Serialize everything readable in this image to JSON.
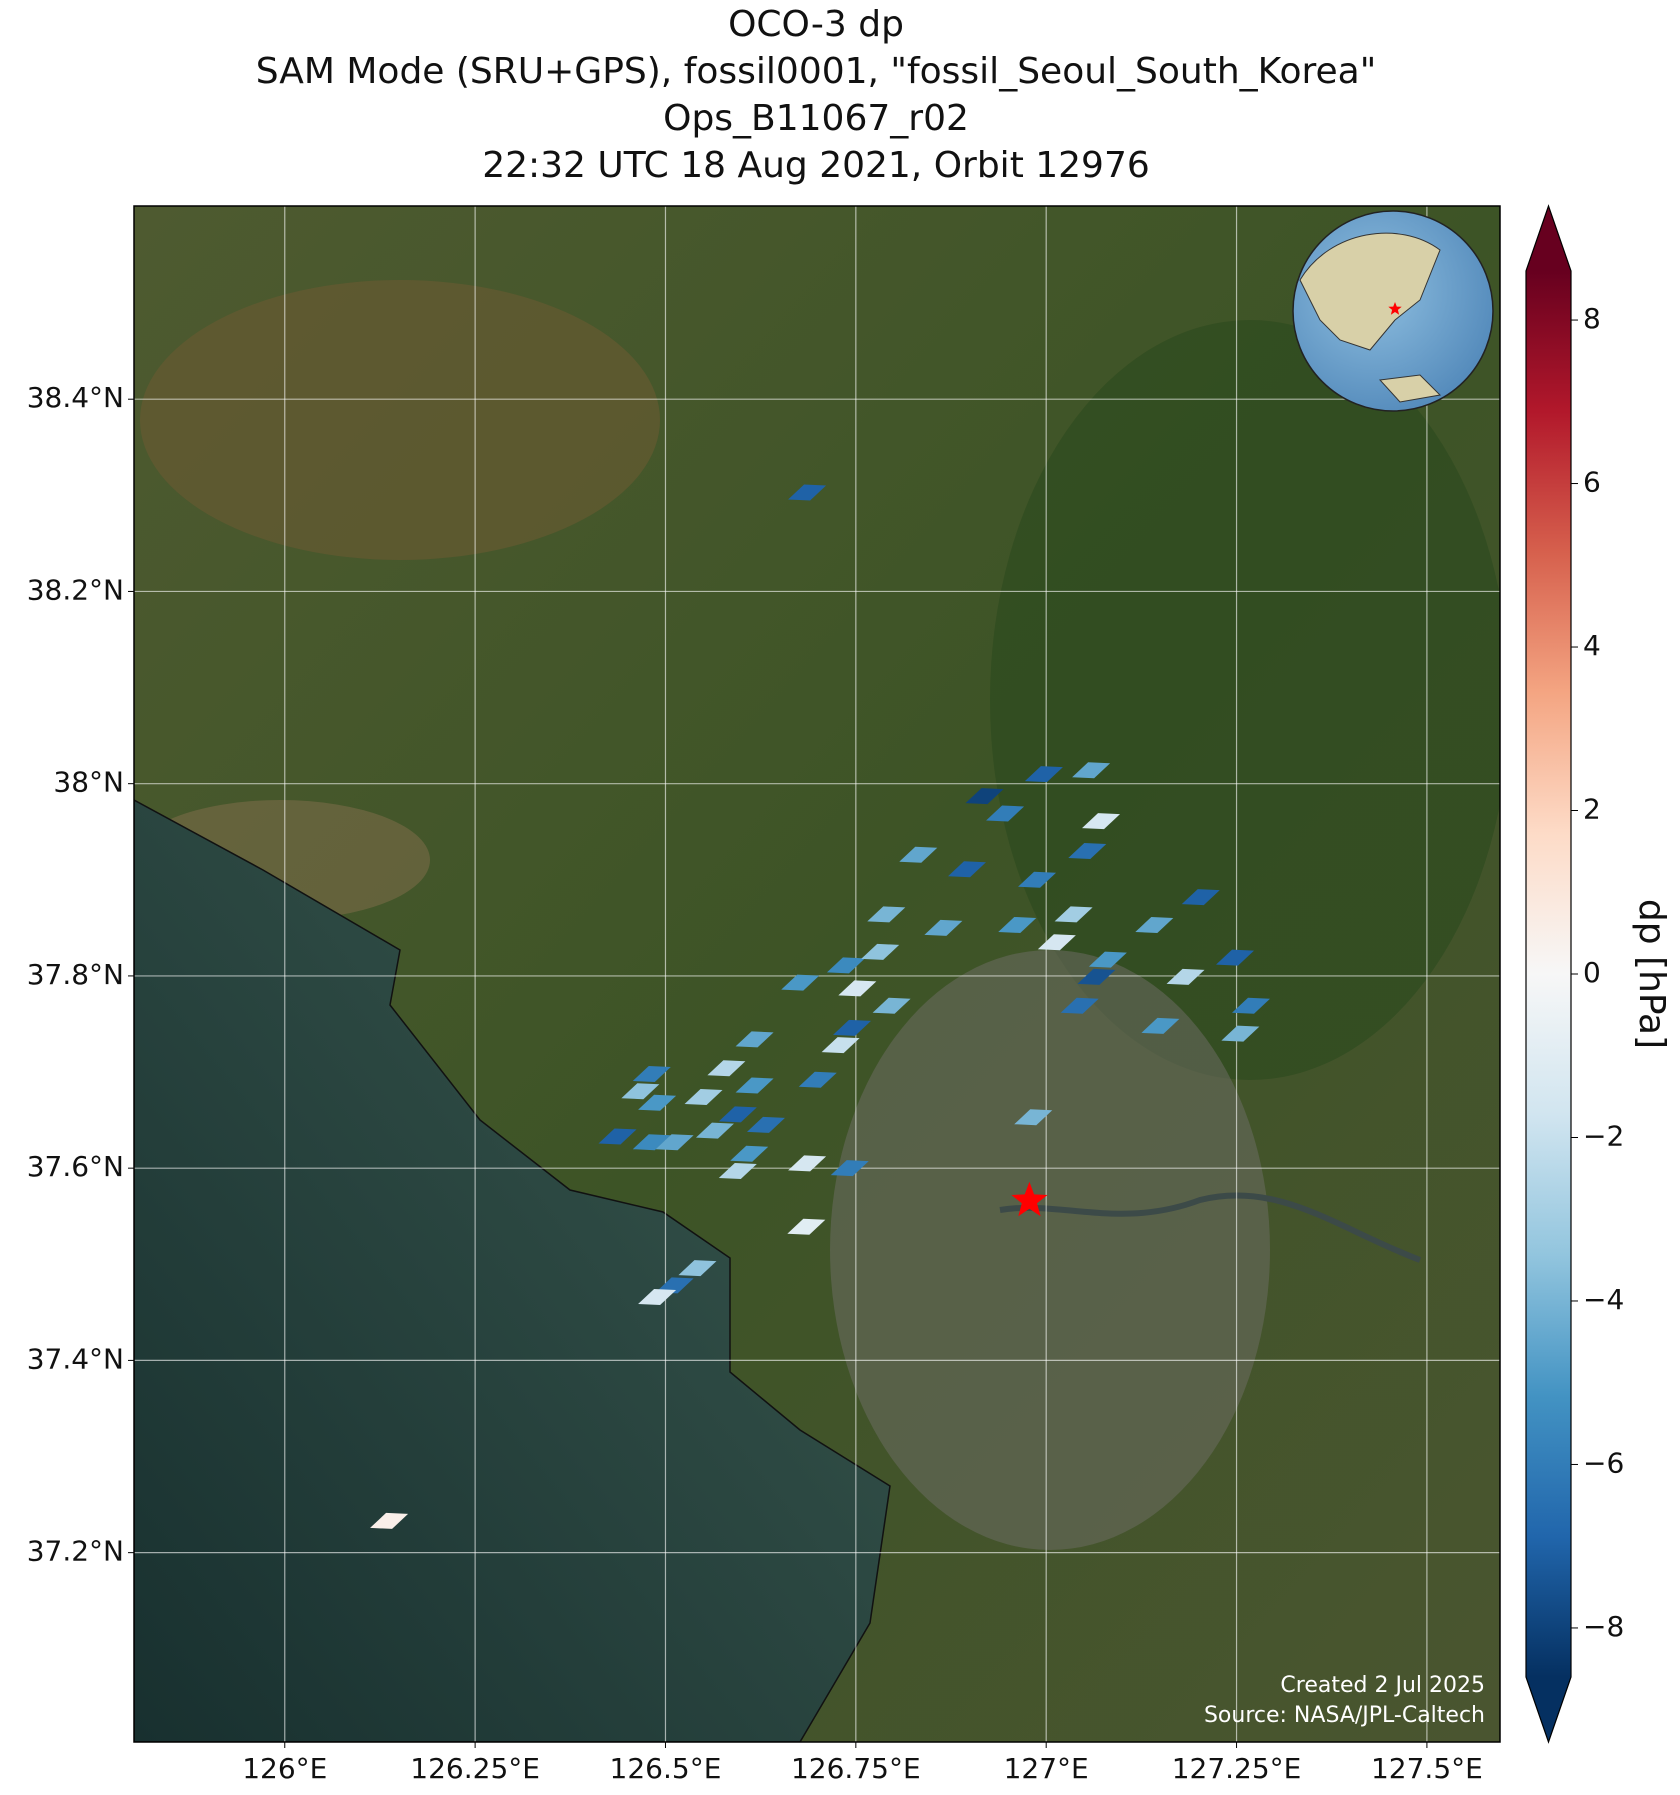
{
  "chart_data": {
    "type": "map",
    "title": [
      "OCO-3 dp",
      "SAM Mode (SRU+GPS), fossil0001, \"fossil_Seoul_South_Korea\"",
      "Ops_B11067_r02",
      "22:32 UTC 18 Aug 2021, Orbit 12976"
    ],
    "xlim": [
      125.802,
      127.596
    ],
    "ylim": [
      37.003,
      38.601
    ],
    "xticks": [
      {
        "value": 126,
        "label": "126°E"
      },
      {
        "value": 126.25,
        "label": "126.25°E"
      },
      {
        "value": 126.5,
        "label": "126.5°E"
      },
      {
        "value": 126.75,
        "label": "126.75°E"
      },
      {
        "value": 127,
        "label": "127°E"
      },
      {
        "value": 127.25,
        "label": "127.25°E"
      },
      {
        "value": 127.5,
        "label": "127.5°E"
      }
    ],
    "yticks": [
      {
        "value": 37.2,
        "label": "37.2°N"
      },
      {
        "value": 37.4,
        "label": "37.4°N"
      },
      {
        "value": 37.6,
        "label": "37.6°N"
      },
      {
        "value": 37.8,
        "label": "37.8°N"
      },
      {
        "value": 38,
        "label": "38°N"
      },
      {
        "value": 38.2,
        "label": "38.2°N"
      },
      {
        "value": 38.4,
        "label": "38.4°N"
      }
    ],
    "grid": true,
    "colormap": [
      "#053061",
      "#2166ac",
      "#4393c3",
      "#92c5de",
      "#d1e5f0",
      "#f7f7f7",
      "#fddbc7",
      "#f4a582",
      "#d6604d",
      "#b2182b",
      "#67001f"
    ],
    "colorbar": {
      "label": "dp [hPa]",
      "lim": [
        -8.6,
        8.6
      ],
      "ticks": [
        {
          "value": -8,
          "label": "−8"
        },
        {
          "value": -6,
          "label": "−6"
        },
        {
          "value": -4,
          "label": "−4"
        },
        {
          "value": -2,
          "label": "−2"
        },
        0,
        2,
        4,
        6,
        8
      ]
    },
    "x": [
      126.686,
      126.137,
      126.685,
      126.686,
      126.742,
      126.983,
      127.059,
      126.997,
      127.072,
      126.919,
      126.946,
      126.832,
      126.896,
      126.988,
      127.054,
      127.203,
      127.142,
      127.036,
      127.081,
      127.066,
      127.014,
      126.962,
      127.044,
      127.183,
      127.15,
      127.269,
      127.255,
      127.248,
      126.79,
      126.865,
      126.737,
      126.782,
      126.752,
      126.797,
      126.745,
      126.73,
      126.7,
      126.617,
      126.58,
      126.617,
      126.55,
      126.595,
      126.632,
      126.565,
      126.61,
      126.595,
      126.482,
      126.467,
      126.489,
      126.437,
      126.482,
      126.512,
      126.542,
      126.512,
      126.489,
      126.677
    ],
    "y": [
      38.303,
      37.233,
      37.539,
      37.605,
      37.6,
      37.653,
      38.014,
      38.01,
      37.961,
      37.987,
      37.969,
      37.926,
      37.911,
      37.9,
      37.93,
      37.882,
      37.853,
      37.864,
      37.817,
      37.799,
      37.835,
      37.853,
      37.769,
      37.799,
      37.748,
      37.769,
      37.74,
      37.819,
      37.864,
      37.85,
      37.811,
      37.825,
      37.787,
      37.769,
      37.746,
      37.728,
      37.692,
      37.734,
      37.704,
      37.686,
      37.674,
      37.656,
      37.645,
      37.639,
      37.615,
      37.597,
      37.698,
      37.68,
      37.668,
      37.633,
      37.627,
      37.627,
      37.496,
      37.478,
      37.466,
      37.793
    ],
    "values": [
      -7,
      0.5,
      -1,
      -1.5,
      -6,
      -4,
      -4.5,
      -7,
      -1.5,
      -8,
      -6,
      -4.5,
      -7,
      -6,
      -6.5,
      -7,
      -4.5,
      -3,
      -5,
      -7.5,
      -1.5,
      -5,
      -6.5,
      -2.5,
      -5,
      -6,
      -4,
      -7,
      -4,
      -4.5,
      -5.5,
      -3.5,
      -1.5,
      -4,
      -7,
      -2,
      -6,
      -4.5,
      -2.5,
      -5,
      -3,
      -7,
      -6.5,
      -4,
      -5,
      -2.5,
      -6,
      -3.5,
      -5,
      -7,
      -5.5,
      -4.5,
      -3.5,
      -6.5,
      -1.5,
      -5
    ],
    "marker": {
      "lon": 126.978,
      "lat": 37.566,
      "color": "#ff0000"
    },
    "credits": [
      "Created 2 Jul 2025",
      "Source: NASA/JPL-Caltech"
    ]
  }
}
